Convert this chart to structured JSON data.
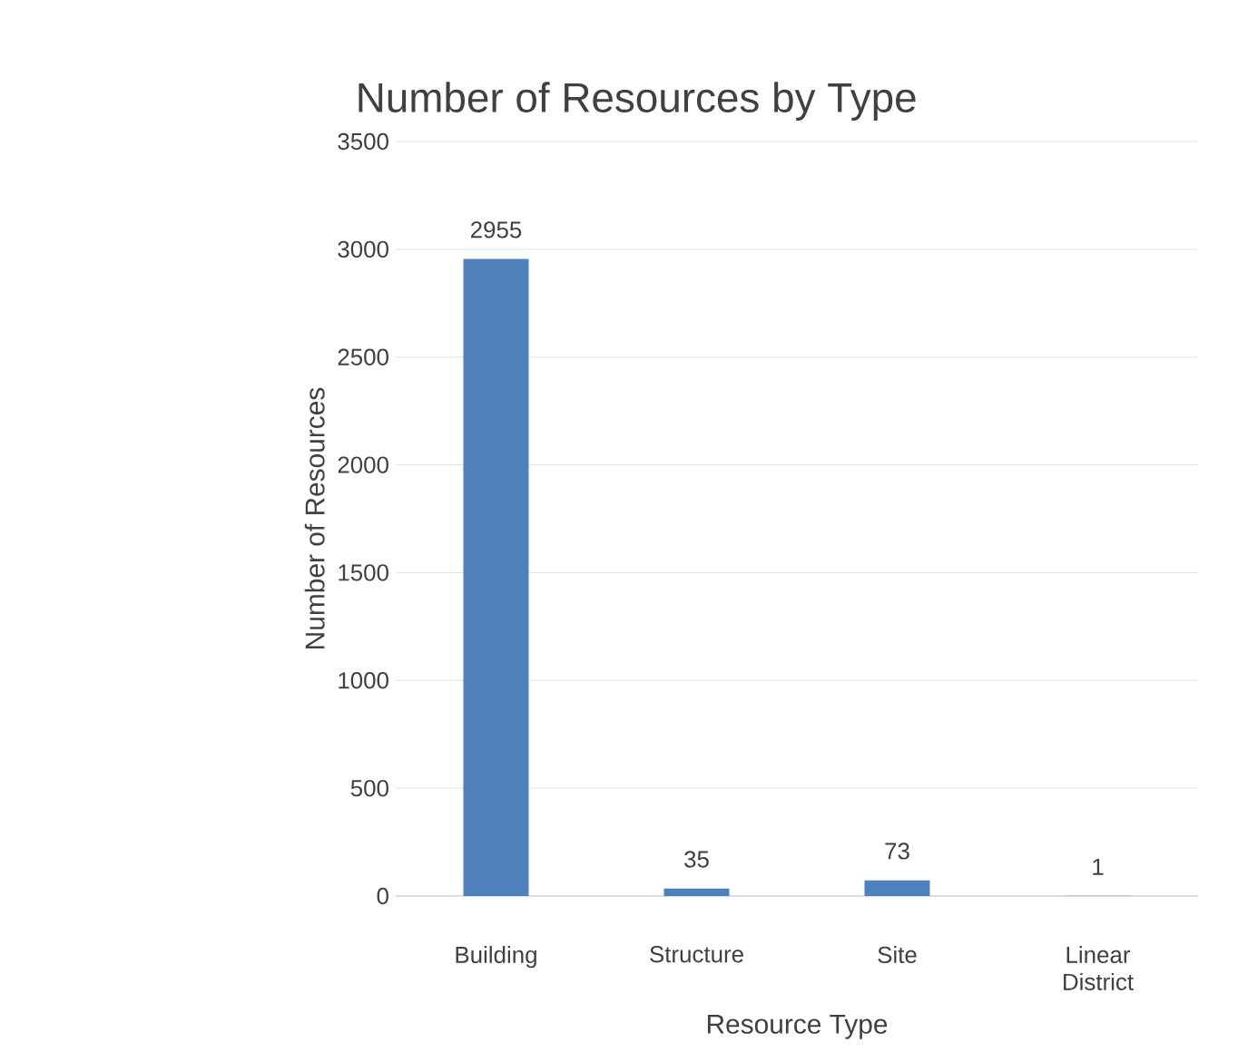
{
  "chart_data": {
    "type": "bar",
    "title": "Number of Resources by Type",
    "xlabel": "Resource Type",
    "ylabel": "Number of Resources",
    "categories": [
      "Building",
      "Structure",
      "Site",
      "Linear District"
    ],
    "values": [
      2955,
      35,
      73,
      1
    ],
    "color": "#4f81bd",
    "ylim": [
      0,
      3500
    ],
    "yticks": [
      0,
      500,
      1000,
      1500,
      2000,
      2500,
      3000,
      3500
    ],
    "grid": "y",
    "data_labels": true
  }
}
